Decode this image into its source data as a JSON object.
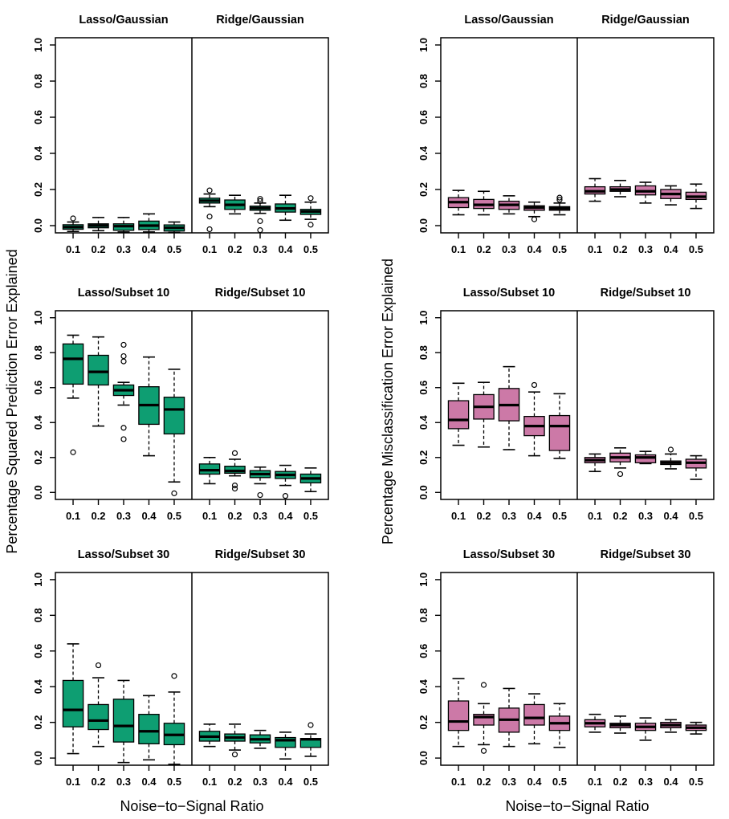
{
  "figure": {
    "background": "#ffffff",
    "line_color": "#000000",
    "x_tick_labels": [
      "0.1",
      "0.2",
      "0.3",
      "0.4",
      "0.5"
    ],
    "y_tick_labels": [
      "0.0",
      "0.2",
      "0.4",
      "0.6",
      "0.8",
      "1.0"
    ]
  },
  "chart_data": [
    {
      "type": "boxplot",
      "figure_position": "left",
      "ylabel": "Percentage Squared Prediction Error Explained",
      "xlabel": "Noise−to−Signal Ratio",
      "box_fill": "#0E9E72",
      "ylim": [
        0,
        1
      ],
      "yticks": [
        0,
        0.2,
        0.4,
        0.6,
        0.8,
        1.0
      ],
      "x_categories": [
        "0.1",
        "0.2",
        "0.3",
        "0.4",
        "0.5"
      ],
      "legend": "none",
      "grid": false,
      "rows": [
        {
          "panels": [
            {
              "title": "Lasso/Gaussian",
              "boxes": [
                {
                  "x": "0.1",
                  "lo": -0.032,
                  "q1": -0.02,
                  "median": -0.008,
                  "q3": 0.005,
                  "hi": 0.02,
                  "outliers": [
                    0.04
                  ]
                },
                {
                  "x": "0.2",
                  "lo": -0.028,
                  "q1": -0.012,
                  "median": 0.0,
                  "q3": 0.01,
                  "hi": 0.045,
                  "outliers": []
                },
                {
                  "x": "0.3",
                  "lo": -0.035,
                  "q1": -0.026,
                  "median": -0.003,
                  "q3": 0.01,
                  "hi": 0.045,
                  "outliers": []
                },
                {
                  "x": "0.4",
                  "lo": -0.035,
                  "q1": -0.022,
                  "median": 0.0,
                  "q3": 0.025,
                  "hi": 0.065,
                  "outliers": []
                },
                {
                  "x": "0.5",
                  "lo": -0.038,
                  "q1": -0.03,
                  "median": -0.012,
                  "q3": 0.004,
                  "hi": 0.02,
                  "outliers": []
                }
              ]
            },
            {
              "title": "Ridge/Gaussian",
              "boxes": [
                {
                  "x": "0.1",
                  "lo": 0.105,
                  "q1": 0.125,
                  "median": 0.138,
                  "q3": 0.152,
                  "hi": 0.175,
                  "outliers": [
                    0.195,
                    0.05,
                    -0.02
                  ]
                },
                {
                  "x": "0.2",
                  "lo": 0.065,
                  "q1": 0.09,
                  "median": 0.115,
                  "q3": 0.142,
                  "hi": 0.168,
                  "outliers": []
                },
                {
                  "x": "0.3",
                  "lo": 0.068,
                  "q1": 0.085,
                  "median": 0.097,
                  "q3": 0.108,
                  "hi": 0.125,
                  "outliers": [
                    0.148,
                    0.136,
                    0.025,
                    -0.025
                  ]
                },
                {
                  "x": "0.4",
                  "lo": 0.03,
                  "q1": 0.075,
                  "median": 0.095,
                  "q3": 0.12,
                  "hi": 0.168,
                  "outliers": []
                },
                {
                  "x": "0.5",
                  "lo": 0.035,
                  "q1": 0.062,
                  "median": 0.078,
                  "q3": 0.09,
                  "hi": 0.13,
                  "outliers": [
                    0.152,
                    0.005
                  ]
                }
              ]
            }
          ]
        },
        {
          "panels": [
            {
              "title": "Lasso/Subset 10",
              "boxes": [
                {
                  "x": "0.1",
                  "lo": 0.54,
                  "q1": 0.62,
                  "median": 0.765,
                  "q3": 0.85,
                  "hi": 0.9,
                  "outliers": [
                    0.23
                  ]
                },
                {
                  "x": "0.2",
                  "lo": 0.38,
                  "q1": 0.615,
                  "median": 0.69,
                  "q3": 0.785,
                  "hi": 0.89,
                  "outliers": []
                },
                {
                  "x": "0.3",
                  "lo": 0.5,
                  "q1": 0.555,
                  "median": 0.585,
                  "q3": 0.615,
                  "hi": 0.63,
                  "outliers": [
                    0.845,
                    0.78,
                    0.75,
                    0.37,
                    0.305
                  ]
                },
                {
                  "x": "0.4",
                  "lo": 0.21,
                  "q1": 0.39,
                  "median": 0.5,
                  "q3": 0.605,
                  "hi": 0.775,
                  "outliers": []
                },
                {
                  "x": "0.5",
                  "lo": 0.06,
                  "q1": 0.335,
                  "median": 0.475,
                  "q3": 0.545,
                  "hi": 0.705,
                  "outliers": [
                    -0.005
                  ]
                }
              ]
            },
            {
              "title": "Ridge/Subset 10",
              "boxes": [
                {
                  "x": "0.1",
                  "lo": 0.05,
                  "q1": 0.105,
                  "median": 0.127,
                  "q3": 0.163,
                  "hi": 0.2,
                  "outliers": []
                },
                {
                  "x": "0.2",
                  "lo": 0.095,
                  "q1": 0.11,
                  "median": 0.123,
                  "q3": 0.15,
                  "hi": 0.19,
                  "outliers": [
                    0.225,
                    0.04,
                    0.022
                  ]
                },
                {
                  "x": "0.3",
                  "lo": 0.05,
                  "q1": 0.085,
                  "median": 0.105,
                  "q3": 0.125,
                  "hi": 0.145,
                  "outliers": [
                    -0.015
                  ]
                },
                {
                  "x": "0.4",
                  "lo": 0.04,
                  "q1": 0.08,
                  "median": 0.1,
                  "q3": 0.12,
                  "hi": 0.155,
                  "outliers": [
                    -0.02
                  ]
                },
                {
                  "x": "0.5",
                  "lo": 0.005,
                  "q1": 0.055,
                  "median": 0.08,
                  "q3": 0.105,
                  "hi": 0.14,
                  "outliers": []
                }
              ]
            }
          ]
        },
        {
          "panels": [
            {
              "title": "Lasso/Subset 30",
              "boxes": [
                {
                  "x": "0.1",
                  "lo": 0.025,
                  "q1": 0.175,
                  "median": 0.27,
                  "q3": 0.435,
                  "hi": 0.64,
                  "outliers": []
                },
                {
                  "x": "0.2",
                  "lo": 0.065,
                  "q1": 0.16,
                  "median": 0.21,
                  "q3": 0.3,
                  "hi": 0.45,
                  "outliers": [
                    0.52
                  ]
                },
                {
                  "x": "0.3",
                  "lo": -0.025,
                  "q1": 0.09,
                  "median": 0.18,
                  "q3": 0.33,
                  "hi": 0.435,
                  "outliers": []
                },
                {
                  "x": "0.4",
                  "lo": -0.01,
                  "q1": 0.08,
                  "median": 0.15,
                  "q3": 0.245,
                  "hi": 0.35,
                  "outliers": []
                },
                {
                  "x": "0.5",
                  "lo": -0.035,
                  "q1": 0.075,
                  "median": 0.13,
                  "q3": 0.195,
                  "hi": 0.37,
                  "outliers": [
                    0.46
                  ]
                }
              ]
            },
            {
              "title": "Ridge/Subset 30",
              "boxes": [
                {
                  "x": "0.1",
                  "lo": 0.065,
                  "q1": 0.095,
                  "median": 0.12,
                  "q3": 0.15,
                  "hi": 0.19,
                  "outliers": []
                },
                {
                  "x": "0.2",
                  "lo": 0.045,
                  "q1": 0.095,
                  "median": 0.115,
                  "q3": 0.135,
                  "hi": 0.19,
                  "outliers": [
                    0.02
                  ]
                },
                {
                  "x": "0.3",
                  "lo": 0.055,
                  "q1": 0.085,
                  "median": 0.105,
                  "q3": 0.13,
                  "hi": 0.155,
                  "outliers": []
                },
                {
                  "x": "0.4",
                  "lo": -0.005,
                  "q1": 0.06,
                  "median": 0.1,
                  "q3": 0.115,
                  "hi": 0.145,
                  "outliers": []
                },
                {
                  "x": "0.5",
                  "lo": 0.01,
                  "q1": 0.06,
                  "median": 0.105,
                  "q3": 0.11,
                  "hi": 0.135,
                  "outliers": [
                    0.185
                  ]
                }
              ]
            }
          ]
        }
      ]
    },
    {
      "type": "boxplot",
      "figure_position": "right",
      "ylabel": "Percentage Misclassification Error Explained",
      "xlabel": "Noise−to−Signal Ratio",
      "box_fill": "#CC79A7",
      "ylim": [
        0,
        1
      ],
      "yticks": [
        0,
        0.2,
        0.4,
        0.6,
        0.8,
        1.0
      ],
      "x_categories": [
        "0.1",
        "0.2",
        "0.3",
        "0.4",
        "0.5"
      ],
      "legend": "none",
      "grid": false,
      "rows": [
        {
          "panels": [
            {
              "title": "Lasso/Gaussian",
              "boxes": [
                {
                  "x": "0.1",
                  "lo": 0.06,
                  "q1": 0.1,
                  "median": 0.13,
                  "q3": 0.155,
                  "hi": 0.195,
                  "outliers": []
                },
                {
                  "x": "0.2",
                  "lo": 0.06,
                  "q1": 0.095,
                  "median": 0.115,
                  "q3": 0.145,
                  "hi": 0.19,
                  "outliers": []
                },
                {
                  "x": "0.3",
                  "lo": 0.065,
                  "q1": 0.09,
                  "median": 0.115,
                  "q3": 0.135,
                  "hi": 0.165,
                  "outliers": []
                },
                {
                  "x": "0.4",
                  "lo": 0.05,
                  "q1": 0.085,
                  "median": 0.1,
                  "q3": 0.11,
                  "hi": 0.13,
                  "outliers": [
                    0.035
                  ]
                },
                {
                  "x": "0.5",
                  "lo": 0.06,
                  "q1": 0.085,
                  "median": 0.095,
                  "q3": 0.105,
                  "hi": 0.125,
                  "outliers": [
                    0.155,
                    0.143
                  ]
                }
              ]
            },
            {
              "title": "Ridge/Gaussian",
              "boxes": [
                {
                  "x": "0.1",
                  "lo": 0.135,
                  "q1": 0.175,
                  "median": 0.19,
                  "q3": 0.215,
                  "hi": 0.26,
                  "outliers": []
                },
                {
                  "x": "0.2",
                  "lo": 0.16,
                  "q1": 0.19,
                  "median": 0.2,
                  "q3": 0.215,
                  "hi": 0.25,
                  "outliers": []
                },
                {
                  "x": "0.3",
                  "lo": 0.125,
                  "q1": 0.17,
                  "median": 0.19,
                  "q3": 0.22,
                  "hi": 0.24,
                  "outliers": []
                },
                {
                  "x": "0.4",
                  "lo": 0.115,
                  "q1": 0.15,
                  "median": 0.175,
                  "q3": 0.2,
                  "hi": 0.22,
                  "outliers": []
                },
                {
                  "x": "0.5",
                  "lo": 0.095,
                  "q1": 0.145,
                  "median": 0.16,
                  "q3": 0.185,
                  "hi": 0.23,
                  "outliers": []
                }
              ]
            }
          ]
        },
        {
          "panels": [
            {
              "title": "Lasso/Subset 10",
              "boxes": [
                {
                  "x": "0.1",
                  "lo": 0.27,
                  "q1": 0.365,
                  "median": 0.415,
                  "q3": 0.525,
                  "hi": 0.625,
                  "outliers": []
                },
                {
                  "x": "0.2",
                  "lo": 0.26,
                  "q1": 0.42,
                  "median": 0.49,
                  "q3": 0.56,
                  "hi": 0.63,
                  "outliers": []
                },
                {
                  "x": "0.3",
                  "lo": 0.245,
                  "q1": 0.41,
                  "median": 0.5,
                  "q3": 0.595,
                  "hi": 0.72,
                  "outliers": []
                },
                {
                  "x": "0.4",
                  "lo": 0.21,
                  "q1": 0.325,
                  "median": 0.38,
                  "q3": 0.435,
                  "hi": 0.575,
                  "outliers": [
                    0.615
                  ]
                },
                {
                  "x": "0.5",
                  "lo": 0.195,
                  "q1": 0.24,
                  "median": 0.38,
                  "q3": 0.44,
                  "hi": 0.565,
                  "outliers": []
                }
              ]
            },
            {
              "title": "Ridge/Subset 10",
              "boxes": [
                {
                  "x": "0.1",
                  "lo": 0.12,
                  "q1": 0.17,
                  "median": 0.185,
                  "q3": 0.2,
                  "hi": 0.22,
                  "outliers": []
                },
                {
                  "x": "0.2",
                  "lo": 0.14,
                  "q1": 0.175,
                  "median": 0.2,
                  "q3": 0.225,
                  "hi": 0.255,
                  "outliers": [
                    0.105
                  ]
                },
                {
                  "x": "0.3",
                  "lo": 0.165,
                  "q1": 0.17,
                  "median": 0.2,
                  "q3": 0.215,
                  "hi": 0.235,
                  "outliers": []
                },
                {
                  "x": "0.4",
                  "lo": 0.135,
                  "q1": 0.16,
                  "median": 0.17,
                  "q3": 0.18,
                  "hi": 0.22,
                  "outliers": [
                    0.245
                  ]
                },
                {
                  "x": "0.5",
                  "lo": 0.075,
                  "q1": 0.14,
                  "median": 0.17,
                  "q3": 0.19,
                  "hi": 0.21,
                  "outliers": []
                }
              ]
            }
          ]
        },
        {
          "panels": [
            {
              "title": "Lasso/Subset 30",
              "boxes": [
                {
                  "x": "0.1",
                  "lo": 0.065,
                  "q1": 0.155,
                  "median": 0.205,
                  "q3": 0.32,
                  "hi": 0.445,
                  "outliers": []
                },
                {
                  "x": "0.2",
                  "lo": 0.075,
                  "q1": 0.185,
                  "median": 0.23,
                  "q3": 0.245,
                  "hi": 0.305,
                  "outliers": [
                    0.41,
                    0.04
                  ]
                },
                {
                  "x": "0.3",
                  "lo": 0.065,
                  "q1": 0.145,
                  "median": 0.215,
                  "q3": 0.28,
                  "hi": 0.39,
                  "outliers": []
                },
                {
                  "x": "0.4",
                  "lo": 0.08,
                  "q1": 0.185,
                  "median": 0.225,
                  "q3": 0.3,
                  "hi": 0.36,
                  "outliers": []
                },
                {
                  "x": "0.5",
                  "lo": 0.06,
                  "q1": 0.155,
                  "median": 0.195,
                  "q3": 0.235,
                  "hi": 0.305,
                  "outliers": []
                }
              ]
            },
            {
              "title": "Ridge/Subset 30",
              "boxes": [
                {
                  "x": "0.1",
                  "lo": 0.145,
                  "q1": 0.175,
                  "median": 0.195,
                  "q3": 0.215,
                  "hi": 0.245,
                  "outliers": []
                },
                {
                  "x": "0.2",
                  "lo": 0.14,
                  "q1": 0.17,
                  "median": 0.185,
                  "q3": 0.195,
                  "hi": 0.235,
                  "outliers": []
                },
                {
                  "x": "0.3",
                  "lo": 0.1,
                  "q1": 0.155,
                  "median": 0.175,
                  "q3": 0.195,
                  "hi": 0.225,
                  "outliers": []
                },
                {
                  "x": "0.4",
                  "lo": 0.145,
                  "q1": 0.17,
                  "median": 0.185,
                  "q3": 0.2,
                  "hi": 0.215,
                  "outliers": []
                },
                {
                  "x": "0.5",
                  "lo": 0.135,
                  "q1": 0.155,
                  "median": 0.17,
                  "q3": 0.185,
                  "hi": 0.2,
                  "outliers": []
                }
              ]
            }
          ]
        }
      ]
    }
  ]
}
